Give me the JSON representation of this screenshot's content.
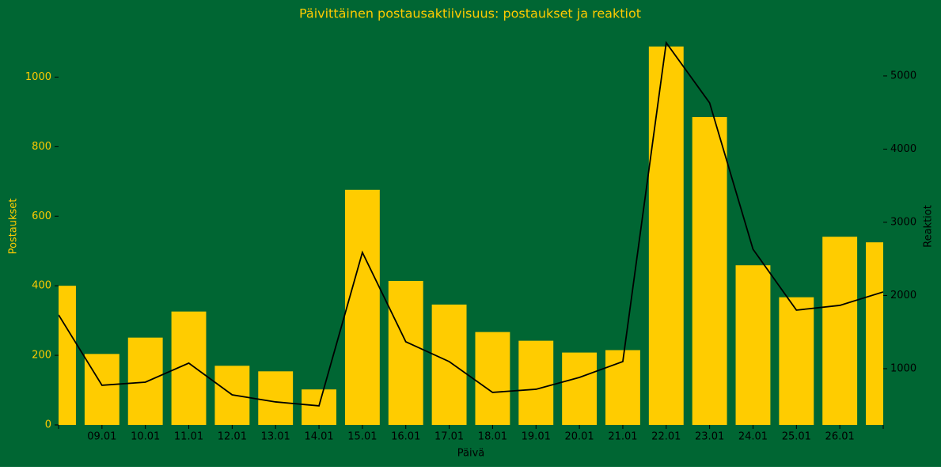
{
  "chart_data": {
    "type": "bar",
    "title": "Päivittäinen postausaktiivisuus: postaukset ja reaktiot",
    "xlabel": "Päivä",
    "ylabel": "Postaukset",
    "y2label": "Reaktiot",
    "background": "#006633",
    "title_color": "#ffcc00",
    "ylabel_color": "#ffcc00",
    "y2label_color": "#000000",
    "categories": [
      null,
      "09.01",
      "10.01",
      "11.01",
      "12.01",
      "13.01",
      "14.01",
      "15.01",
      "16.01",
      "17.01",
      "18.01",
      "19.01",
      "20.01",
      "21.01",
      "22.01",
      "23.01",
      "24.01",
      "25.01",
      "26.01",
      null
    ],
    "series": [
      {
        "name": "Postaukset",
        "type": "bar",
        "color": "#ffcc00",
        "values": [
          400,
          204,
          251,
          326,
          170,
          154,
          102,
          676,
          414,
          346,
          267,
          242,
          208,
          215,
          1088,
          885,
          459,
          367,
          541,
          525
        ]
      },
      {
        "name": "Reaktiot",
        "type": "line",
        "axis": "y2",
        "color": "#000000",
        "values": [
          1735,
          773,
          816,
          1076,
          643,
          546,
          492,
          2589,
          1368,
          1097,
          676,
          719,
          881,
          1097,
          5454,
          4632,
          2632,
          1800,
          1865,
          2049
        ]
      }
    ],
    "ylim": [
      0,
      1142
    ],
    "yticks": [
      0,
      200,
      400,
      600,
      800,
      1000
    ],
    "y2lim": [
      232,
      5659
    ],
    "y2ticks": [
      1000,
      2000,
      3000,
      4000,
      5000
    ],
    "grid": false
  }
}
